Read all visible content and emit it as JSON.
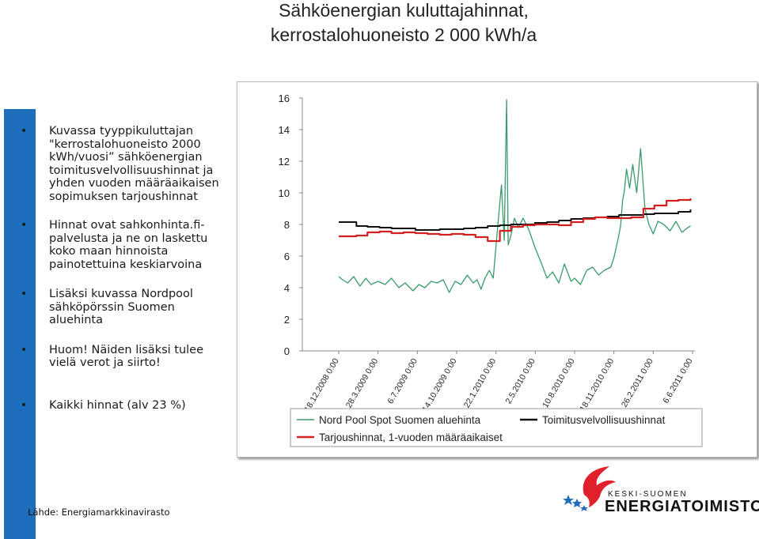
{
  "title": {
    "line1": "Sähköenergian kuluttajahinnat,",
    "line2": "kerrostalohuoneisto 2 000 kWh/a"
  },
  "bullets": [
    "Kuvassa tyyppikuluttajan \"kerrostalohuoneisto 2000 kWh/vuosi” sähköenergian toimitusvelvollisuushinnat ja yhden vuoden määräaikaisen sopimuksen tarjoushinnat",
    "Hinnat ovat sahkonhinta.fi-palvelusta ja ne on laskettu koko maan hinnoista painotettuina keskiarvoina",
    "Lisäksi kuvassa Nordpool sähköpörssin Suomen aluehinta",
    "Huom! Näiden lisäksi tulee vielä verot ja siirto!",
    "Kaikki hinnat (alv 23 %)"
  ],
  "source": "Lähde: Energiamarkkinavirasto",
  "logo": {
    "line1": "KESKI-SUOMEN",
    "line2": "ENERGIATOIMISTO",
    "colors": {
      "red": "#e0202a",
      "blue": "#1f6dbd"
    }
  },
  "chart_data": {
    "type": "line",
    "title": "",
    "xlabel": "",
    "ylabel": "",
    "ylim": [
      0,
      16
    ],
    "yticks": [
      0,
      2,
      4,
      6,
      8,
      10,
      12,
      14,
      16
    ],
    "grid": false,
    "legend_position": "bottom",
    "xtick_labels": [
      "18.12.2008 0:00",
      "28.3.2009 0:00",
      "6.7.2009 0:00",
      "14.10.2009 0:00",
      "22.1.2010 0:00",
      "2.5.2010 0:00",
      "10.8.2010 0:00",
      "18.11.2010 0:00",
      "26.2.2011 0:00",
      "6.6.2011 0:00"
    ],
    "xtick_dates": [
      "2008-12-18",
      "2009-03-28",
      "2009-07-06",
      "2009-10-14",
      "2010-01-22",
      "2010-05-02",
      "2010-08-10",
      "2010-11-18",
      "2011-02-26",
      "2011-06-06"
    ],
    "series": [
      {
        "name": "Nord Pool Spot Suomen aluehinta",
        "color": "#3a9a6a",
        "x": [
          "2008-12-18",
          "2008-12-28",
          "2009-01-10",
          "2009-01-25",
          "2009-02-10",
          "2009-02-25",
          "2009-03-10",
          "2009-03-28",
          "2009-04-15",
          "2009-05-01",
          "2009-05-20",
          "2009-06-05",
          "2009-06-25",
          "2009-07-10",
          "2009-07-25",
          "2009-08-10",
          "2009-08-25",
          "2009-09-10",
          "2009-09-25",
          "2009-10-10",
          "2009-10-25",
          "2009-11-10",
          "2009-11-25",
          "2009-12-05",
          "2009-12-15",
          "2009-12-25",
          "2010-01-05",
          "2010-01-15",
          "2010-01-25",
          "2010-02-05",
          "2010-02-12",
          "2010-02-18",
          "2010-02-22",
          "2010-03-01",
          "2010-03-10",
          "2010-03-20",
          "2010-04-01",
          "2010-04-15",
          "2010-05-02",
          "2010-05-15",
          "2010-06-01",
          "2010-06-15",
          "2010-07-01",
          "2010-07-15",
          "2010-08-01",
          "2010-08-10",
          "2010-08-25",
          "2010-09-10",
          "2010-09-25",
          "2010-10-10",
          "2010-10-25",
          "2010-11-10",
          "2010-11-18",
          "2010-11-28",
          "2010-12-05",
          "2010-12-10",
          "2010-12-15",
          "2010-12-20",
          "2010-12-28",
          "2011-01-05",
          "2011-01-15",
          "2011-01-25",
          "2011-02-05",
          "2011-02-15",
          "2011-02-26",
          "2011-03-10",
          "2011-03-25",
          "2011-04-10",
          "2011-04-25",
          "2011-05-10",
          "2011-05-25",
          "2011-06-01"
        ],
        "values": [
          4.7,
          4.5,
          4.3,
          4.7,
          4.1,
          4.6,
          4.2,
          4.4,
          4.2,
          4.6,
          4.0,
          4.3,
          3.8,
          4.2,
          4.0,
          4.4,
          4.3,
          4.5,
          3.7,
          4.4,
          4.2,
          4.8,
          4.3,
          4.5,
          3.9,
          4.6,
          5.1,
          4.6,
          7.5,
          10.5,
          7.0,
          15.9,
          6.7,
          7.3,
          8.4,
          7.8,
          8.4,
          7.7,
          6.5,
          5.7,
          4.6,
          5.0,
          4.3,
          5.5,
          4.4,
          4.6,
          4.2,
          5.1,
          5.3,
          4.8,
          5.1,
          5.3,
          5.9,
          7.0,
          7.9,
          9.5,
          10.2,
          11.5,
          10.3,
          11.8,
          10.0,
          12.8,
          9.0,
          8.0,
          7.4,
          8.2,
          8.0,
          7.6,
          8.2,
          7.5,
          7.8,
          7.9
        ]
      },
      {
        "name": "Toimitusvelvollisuushinnat",
        "color": "#111111",
        "x": [
          "2008-12-18",
          "2009-01-01",
          "2009-02-01",
          "2009-03-01",
          "2009-04-01",
          "2009-05-01",
          "2009-06-01",
          "2009-07-01",
          "2009-08-01",
          "2009-09-01",
          "2009-10-01",
          "2009-11-01",
          "2009-12-01",
          "2010-01-01",
          "2010-02-01",
          "2010-03-01",
          "2010-04-01",
          "2010-05-01",
          "2010-06-01",
          "2010-07-01",
          "2010-08-01",
          "2010-09-01",
          "2010-10-01",
          "2010-11-01",
          "2010-12-01",
          "2011-01-01",
          "2011-02-01",
          "2011-03-01",
          "2011-04-01",
          "2011-05-01",
          "2011-06-01"
        ],
        "values": [
          8.15,
          8.15,
          7.9,
          7.85,
          7.8,
          7.75,
          7.75,
          7.65,
          7.65,
          7.7,
          7.7,
          7.75,
          7.8,
          7.9,
          7.95,
          8.0,
          8.0,
          8.1,
          8.15,
          8.25,
          8.35,
          8.4,
          8.45,
          8.5,
          8.6,
          8.6,
          8.65,
          8.7,
          8.7,
          8.8,
          8.95
        ]
      },
      {
        "name": "Tarjoushinnat, 1-vuoden määräaikaiset",
        "color": "#d42020",
        "x": [
          "2008-12-18",
          "2009-01-01",
          "2009-02-01",
          "2009-03-01",
          "2009-04-01",
          "2009-05-01",
          "2009-06-01",
          "2009-07-01",
          "2009-08-01",
          "2009-09-01",
          "2009-10-01",
          "2009-11-01",
          "2009-12-01",
          "2010-01-01",
          "2010-02-01",
          "2010-03-01",
          "2010-04-01",
          "2010-05-01",
          "2010-06-01",
          "2010-07-01",
          "2010-08-01",
          "2010-09-01",
          "2010-10-01",
          "2010-11-01",
          "2010-12-01",
          "2011-01-01",
          "2011-02-01",
          "2011-03-01",
          "2011-04-01",
          "2011-05-01",
          "2011-06-01"
        ],
        "values": [
          7.25,
          7.25,
          7.3,
          7.5,
          7.55,
          7.45,
          7.5,
          7.45,
          7.4,
          7.35,
          7.4,
          7.35,
          7.2,
          6.95,
          7.6,
          7.85,
          7.95,
          8.0,
          8.0,
          7.95,
          8.15,
          8.35,
          8.45,
          8.4,
          8.4,
          8.45,
          9.0,
          9.2,
          9.5,
          9.55,
          9.65
        ]
      }
    ]
  }
}
